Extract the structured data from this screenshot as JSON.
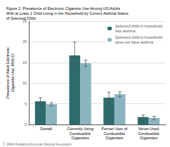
{
  "chart_data": {
    "type": "bar",
    "title": "Figure 2. Prevalence of Electronic Cigarette Use Among US Adults\nWith at Least 1 Child Living in the Household by Current Asthma Status\nof Selected Child",
    "categories": [
      "Overall",
      "Currently Using\nCombustible\nCigarettes",
      "Former User of\nCombustible\nCigarettes",
      "Never Used\nCombustible\nCigarettes"
    ],
    "series": [
      {
        "name": "Selected child in household\nhas asthma",
        "color": "#2e6b6b",
        "values": [
          5.6,
          16.7,
          6.5,
          1.8
        ],
        "errors": [
          0.9,
          3.3,
          1.3,
          0.5
        ]
      },
      {
        "name": "Selected child in household\ndoes not have asthma",
        "color": "#8ab5c0",
        "values": [
          4.9,
          14.8,
          7.3,
          1.6
        ],
        "errors": [
          0.4,
          0.8,
          0.6,
          0.4
        ]
      }
    ],
    "ylabel": "Prevalence of Adult Electronic\nCigarette Use, 95% CI",
    "ylim": [
      0,
      25
    ],
    "yticks": [
      0,
      5,
      10,
      15,
      20,
      25
    ],
    "grid": true,
    "legend": "upper right",
    "annotations": [
      "© JAMA Pediatrics/American Medical Association"
    ]
  }
}
